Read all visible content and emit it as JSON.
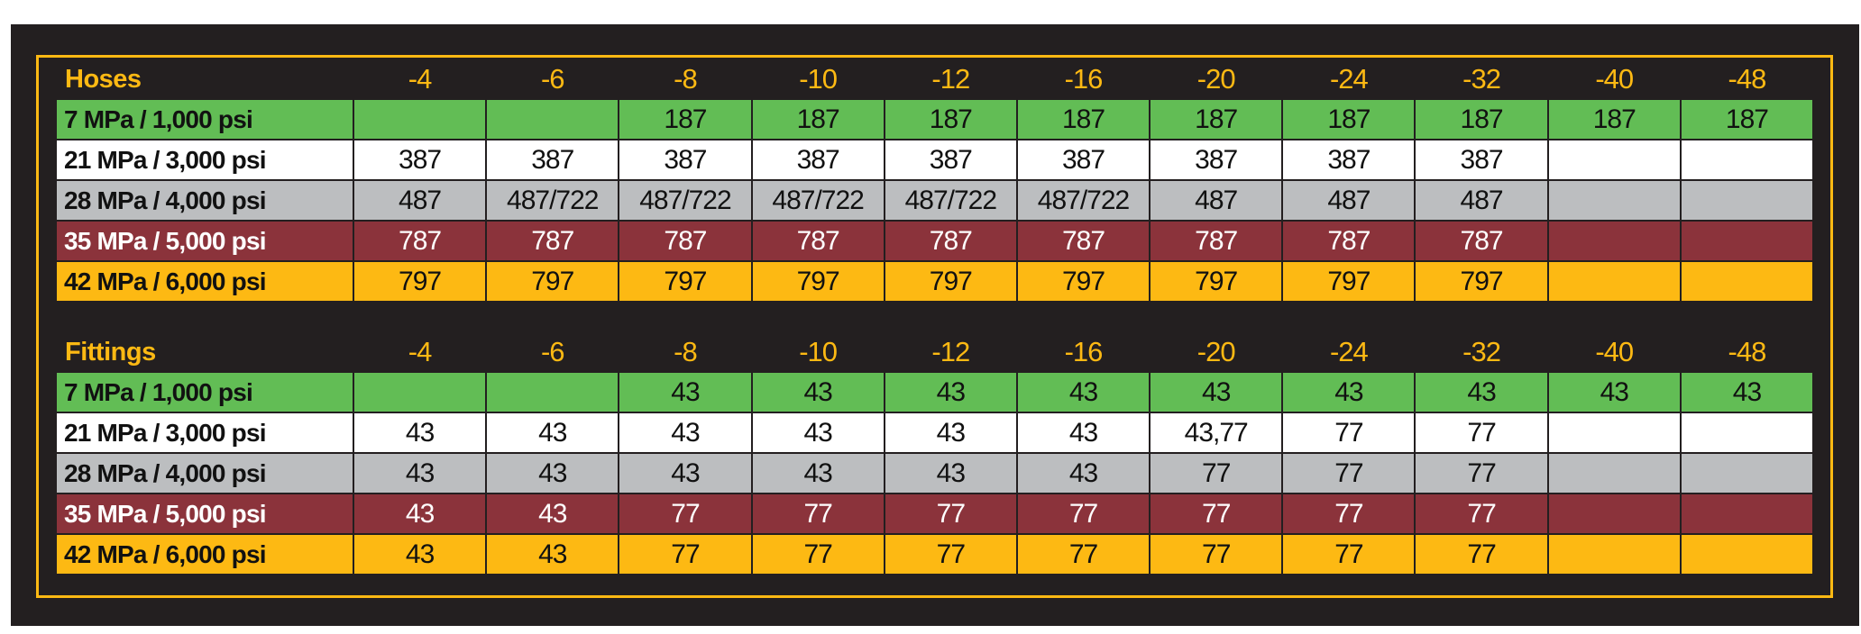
{
  "colors": {
    "background": "#231f20",
    "accent": "#fdb913"
  },
  "sizes": [
    "-4",
    "-6",
    "-8",
    "-10",
    "-12",
    "-16",
    "-20",
    "-24",
    "-32",
    "-40",
    "-48"
  ],
  "pressure_rows": [
    {
      "label": "7 MPa / 1,000 psi",
      "bg": "#62bd55",
      "fg": "#111111"
    },
    {
      "label": "21 MPa / 3,000 psi",
      "bg": "#ffffff",
      "fg": "#111111"
    },
    {
      "label": "28 MPa / 4,000 psi",
      "bg": "#bcbec0",
      "fg": "#111111"
    },
    {
      "label": "35 MPa / 5,000 psi",
      "bg": "#8b333b",
      "fg": "#ffffff"
    },
    {
      "label": "42 MPa / 6,000 psi",
      "bg": "#fdb913",
      "fg": "#111111"
    }
  ],
  "tables": [
    {
      "title": "Hoses",
      "values": [
        [
          "",
          "",
          "187",
          "187",
          "187",
          "187",
          "187",
          "187",
          "187",
          "187",
          "187"
        ],
        [
          "387",
          "387",
          "387",
          "387",
          "387",
          "387",
          "387",
          "387",
          "387",
          "",
          ""
        ],
        [
          "487",
          "487/722",
          "487/722",
          "487/722",
          "487/722",
          "487/722",
          "487",
          "487",
          "487",
          "",
          ""
        ],
        [
          "787",
          "787",
          "787",
          "787",
          "787",
          "787",
          "787",
          "787",
          "787",
          "",
          ""
        ],
        [
          "797",
          "797",
          "797",
          "797",
          "797",
          "797",
          "797",
          "797",
          "797",
          "",
          ""
        ]
      ]
    },
    {
      "title": "Fittings",
      "values": [
        [
          "",
          "",
          "43",
          "43",
          "43",
          "43",
          "43",
          "43",
          "43",
          "43",
          "43"
        ],
        [
          "43",
          "43",
          "43",
          "43",
          "43",
          "43",
          "43,77",
          "77",
          "77",
          "",
          ""
        ],
        [
          "43",
          "43",
          "43",
          "43",
          "43",
          "43",
          "77",
          "77",
          "77",
          "",
          ""
        ],
        [
          "43",
          "43",
          "77",
          "77",
          "77",
          "77",
          "77",
          "77",
          "77",
          "",
          ""
        ],
        [
          "43",
          "43",
          "77",
          "77",
          "77",
          "77",
          "77",
          "77",
          "77",
          "",
          ""
        ]
      ]
    }
  ]
}
